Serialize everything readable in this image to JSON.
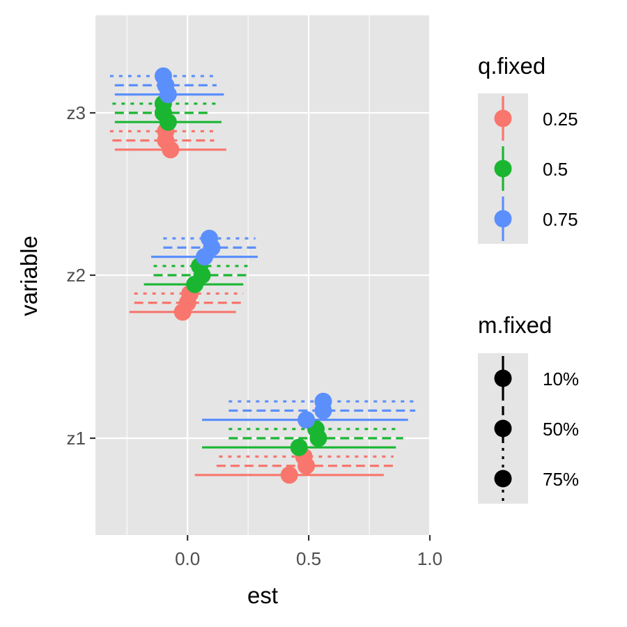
{
  "chart_data": {
    "type": "scatter",
    "subtype": "pointrange-horizontal",
    "xlabel": "est",
    "ylabel": "variable",
    "xlim": [
      -0.38,
      1.0
    ],
    "x_ticks": [
      0.0,
      0.5,
      1.0
    ],
    "x_tick_labels": [
      "0.0",
      "0.5",
      "1.0"
    ],
    "categories": [
      "z1",
      "z2",
      "z3"
    ],
    "grid": true,
    "colors": {
      "panel_bg": "#e5e5e5",
      "grid": "#ffffff",
      "q025": "#f8766d",
      "q05": "#1ab632",
      "q075": "#5b8ffc",
      "legend_key_bg": "#e5e5e5"
    },
    "legend_position": "right",
    "legends": [
      {
        "title": "q.fixed",
        "entries": [
          {
            "label": "0.25",
            "color": "#f8766d"
          },
          {
            "label": "0.5",
            "color": "#1ab632"
          },
          {
            "label": "0.75",
            "color": "#5b8ffc"
          }
        ]
      },
      {
        "title": "m.fixed",
        "entries": [
          {
            "label": "10%",
            "linetype": "solid"
          },
          {
            "label": "50%",
            "linetype": "dashed"
          },
          {
            "label": "75%",
            "linetype": "dotted"
          }
        ]
      }
    ],
    "points": [
      {
        "variable": "z3",
        "q": "0.25",
        "m": "10%",
        "est": -0.07,
        "lo": -0.3,
        "hi": 0.16
      },
      {
        "variable": "z3",
        "q": "0.25",
        "m": "50%",
        "est": -0.09,
        "lo": -0.31,
        "hi": 0.11
      },
      {
        "variable": "z3",
        "q": "0.25",
        "m": "75%",
        "est": -0.09,
        "lo": -0.32,
        "hi": 0.12
      },
      {
        "variable": "z3",
        "q": "0.5",
        "m": "10%",
        "est": -0.08,
        "lo": -0.3,
        "hi": 0.14
      },
      {
        "variable": "z3",
        "q": "0.5",
        "m": "50%",
        "est": -0.1,
        "lo": -0.3,
        "hi": 0.1
      },
      {
        "variable": "z3",
        "q": "0.5",
        "m": "75%",
        "est": -0.1,
        "lo": -0.31,
        "hi": 0.12
      },
      {
        "variable": "z3",
        "q": "0.75",
        "m": "10%",
        "est": -0.08,
        "lo": -0.3,
        "hi": 0.15
      },
      {
        "variable": "z3",
        "q": "0.75",
        "m": "50%",
        "est": -0.09,
        "lo": -0.3,
        "hi": 0.12
      },
      {
        "variable": "z3",
        "q": "0.75",
        "m": "75%",
        "est": -0.1,
        "lo": -0.32,
        "hi": 0.12
      },
      {
        "variable": "z2",
        "q": "0.25",
        "m": "10%",
        "est": -0.02,
        "lo": -0.24,
        "hi": 0.2
      },
      {
        "variable": "z2",
        "q": "0.25",
        "m": "50%",
        "est": 0.0,
        "lo": -0.22,
        "hi": 0.24
      },
      {
        "variable": "z2",
        "q": "0.25",
        "m": "75%",
        "est": 0.01,
        "lo": -0.22,
        "hi": 0.23
      },
      {
        "variable": "z2",
        "q": "0.5",
        "m": "10%",
        "est": 0.03,
        "lo": -0.18,
        "hi": 0.23
      },
      {
        "variable": "z2",
        "q": "0.5",
        "m": "50%",
        "est": 0.06,
        "lo": -0.14,
        "hi": 0.25
      },
      {
        "variable": "z2",
        "q": "0.5",
        "m": "75%",
        "est": 0.05,
        "lo": -0.14,
        "hi": 0.25
      },
      {
        "variable": "z2",
        "q": "0.75",
        "m": "10%",
        "est": 0.07,
        "lo": -0.15,
        "hi": 0.29
      },
      {
        "variable": "z2",
        "q": "0.75",
        "m": "50%",
        "est": 0.1,
        "lo": -0.1,
        "hi": 0.3
      },
      {
        "variable": "z2",
        "q": "0.75",
        "m": "75%",
        "est": 0.09,
        "lo": -0.1,
        "hi": 0.28
      },
      {
        "variable": "z1",
        "q": "0.25",
        "m": "10%",
        "est": 0.42,
        "lo": 0.03,
        "hi": 0.81
      },
      {
        "variable": "z1",
        "q": "0.25",
        "m": "50%",
        "est": 0.49,
        "lo": 0.12,
        "hi": 0.85
      },
      {
        "variable": "z1",
        "q": "0.25",
        "m": "75%",
        "est": 0.48,
        "lo": 0.13,
        "hi": 0.85
      },
      {
        "variable": "z1",
        "q": "0.5",
        "m": "10%",
        "est": 0.46,
        "lo": 0.06,
        "hi": 0.86
      },
      {
        "variable": "z1",
        "q": "0.5",
        "m": "50%",
        "est": 0.54,
        "lo": 0.17,
        "hi": 0.89
      },
      {
        "variable": "z1",
        "q": "0.5",
        "m": "75%",
        "est": 0.53,
        "lo": 0.17,
        "hi": 0.88
      },
      {
        "variable": "z1",
        "q": "0.75",
        "m": "10%",
        "est": 0.49,
        "lo": 0.06,
        "hi": 0.91
      },
      {
        "variable": "z1",
        "q": "0.75",
        "m": "50%",
        "est": 0.56,
        "lo": 0.17,
        "hi": 0.94
      },
      {
        "variable": "z1",
        "q": "0.75",
        "m": "75%",
        "est": 0.56,
        "lo": 0.17,
        "hi": 0.94
      }
    ]
  }
}
